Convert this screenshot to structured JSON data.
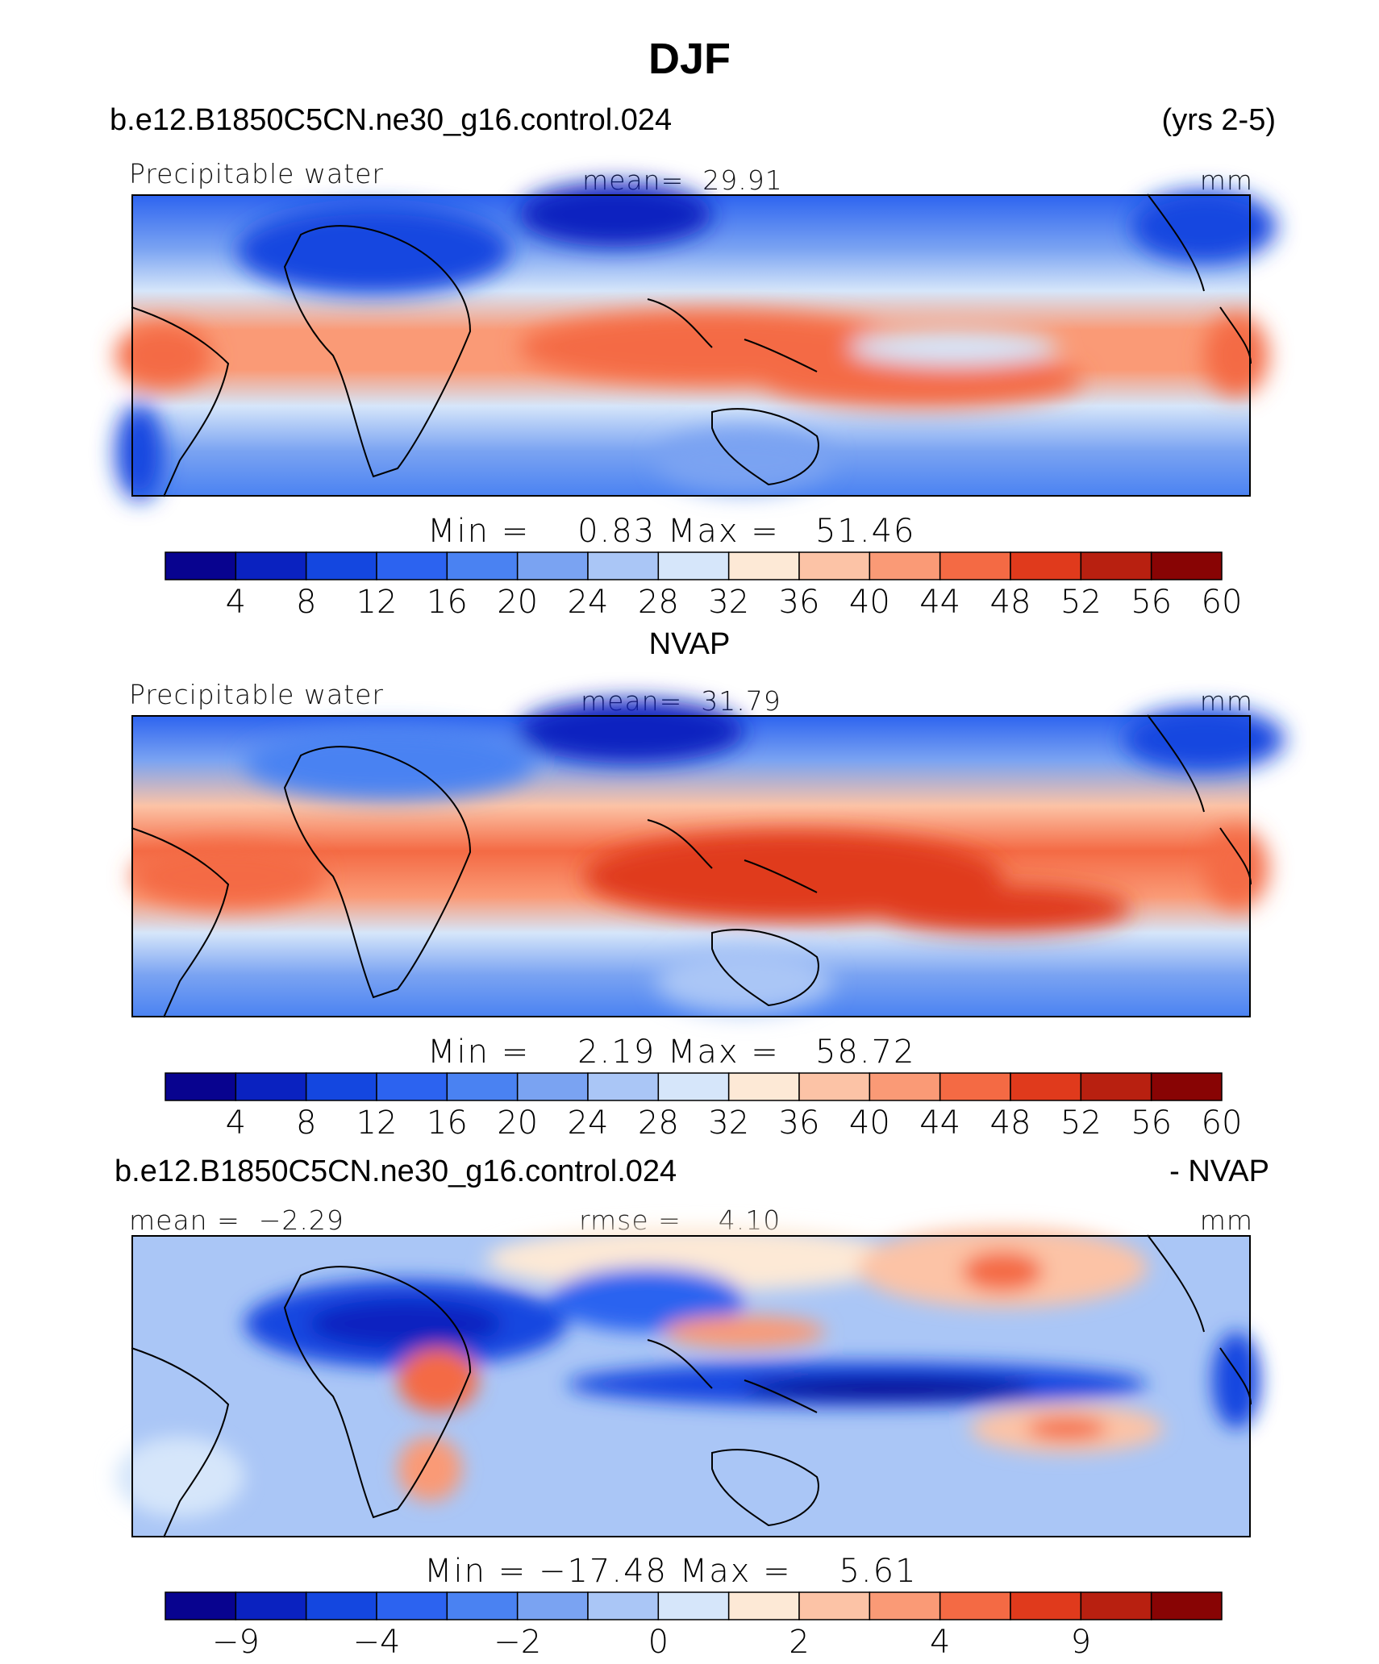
{
  "page": {
    "title": "DJF",
    "case_name": "b.e12.B1850C5CN.ne30_g16.control.024",
    "years": "(yrs 2-5)",
    "obs_name": "NVAP",
    "diff_case": "b.e12.B1850C5CN.ne30_g16.control.024",
    "diff_suffix": "- NVAP"
  },
  "chart_data": [
    {
      "type": "heatmap",
      "panel": "model",
      "variable": "Precipitable water",
      "mean_label": "mean=",
      "mean_value": "29.91",
      "units": "mm",
      "min_label": "Min  =",
      "min_value": "0.83",
      "max_label": "Max  =",
      "max_value": "51.46",
      "colorbar_ticks": [
        "4",
        "8",
        "12",
        "16",
        "20",
        "24",
        "28",
        "32",
        "36",
        "40",
        "44",
        "48",
        "52",
        "56",
        "60"
      ],
      "colorbar_colors": [
        "#08038f",
        "#0a22c0",
        "#1447e0",
        "#2c63f0",
        "#4a82f2",
        "#7aa3f2",
        "#aac6f6",
        "#d6e6fa",
        "#fde9d6",
        "#fcc3a6",
        "#fa9a76",
        "#f46a44",
        "#e03a1c",
        "#b82010",
        "#880404"
      ],
      "xlim": [
        -180,
        180
      ],
      "ylim": [
        -40,
        40
      ]
    },
    {
      "type": "heatmap",
      "panel": "obs",
      "variable": "Precipitable water",
      "mean_label": "mean=",
      "mean_value": "31.79",
      "units": "mm",
      "min_label": "Min  =",
      "min_value": "2.19",
      "max_label": "Max  =",
      "max_value": "58.72",
      "colorbar_ticks": [
        "4",
        "8",
        "12",
        "16",
        "20",
        "24",
        "28",
        "32",
        "36",
        "40",
        "44",
        "48",
        "52",
        "56",
        "60"
      ],
      "colorbar_colors": [
        "#08038f",
        "#0a22c0",
        "#1447e0",
        "#2c63f0",
        "#4a82f2",
        "#7aa3f2",
        "#aac6f6",
        "#d6e6fa",
        "#fde9d6",
        "#fcc3a6",
        "#fa9a76",
        "#f46a44",
        "#e03a1c",
        "#b82010",
        "#880404"
      ],
      "xlim": [
        -180,
        180
      ],
      "ylim": [
        -40,
        40
      ]
    },
    {
      "type": "heatmap",
      "panel": "difference",
      "mean_label": "mean =",
      "mean_value": "−2.29",
      "rmse_label": "rmse =",
      "rmse_value": "4.10",
      "units": "mm",
      "min_label": "Min  =",
      "min_value": "−17.48",
      "max_label": "Max  =",
      "max_value": "5.61",
      "colorbar_ticks": [
        "−9",
        "−4",
        "−2",
        "0",
        "2",
        "4",
        "9"
      ],
      "colorbar_tick_positions": [
        1,
        3,
        5,
        7,
        9,
        11,
        13
      ],
      "colorbar_colors": [
        "#08038f",
        "#0a22c0",
        "#1447e0",
        "#2c63f0",
        "#4a82f2",
        "#7aa3f2",
        "#aac6f6",
        "#d6e6fa",
        "#fde9d6",
        "#fcc3a6",
        "#fa9a76",
        "#f46a44",
        "#e03a1c",
        "#b82010",
        "#880404"
      ],
      "xlim": [
        -180,
        180
      ],
      "ylim": [
        -40,
        40
      ]
    }
  ]
}
